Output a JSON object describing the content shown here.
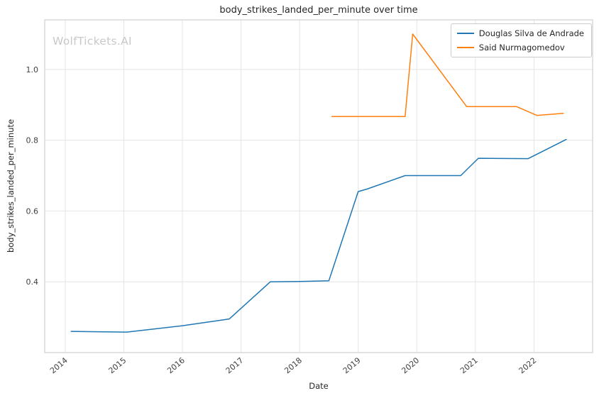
{
  "watermark": "WolfTickets.AI",
  "chart_data": {
    "type": "line",
    "title": "body_strikes_landed_per_minute over time",
    "xlabel": "Date",
    "ylabel": "body_strikes_landed_per_minute",
    "xlim": [
      2013.65,
      2023.0
    ],
    "ylim": [
      0.2,
      1.14
    ],
    "xticks": [
      2014,
      2015,
      2016,
      2017,
      2018,
      2019,
      2020,
      2021,
      2022
    ],
    "yticks": [
      0.4,
      0.6,
      0.8,
      1.0
    ],
    "grid": true,
    "legend_position": "upper right",
    "series": [
      {
        "name": "Douglas Silva de Andrade",
        "color": "#1f77b4",
        "x": [
          2014.1,
          2015.05,
          2016.0,
          2016.8,
          2017.5,
          2018.0,
          2018.5,
          2019.0,
          2019.15,
          2019.8,
          2020.75,
          2021.05,
          2021.9,
          2022.55
        ],
        "y": [
          0.26,
          0.258,
          0.276,
          0.295,
          0.4,
          0.401,
          0.403,
          0.655,
          0.662,
          0.7,
          0.7,
          0.749,
          0.748,
          0.802
        ]
      },
      {
        "name": "Said Nurmagomedov",
        "color": "#ff7f0e",
        "x": [
          2018.55,
          2019.8,
          2019.93,
          2020.85,
          2021.7,
          2022.05,
          2022.5
        ],
        "y": [
          0.867,
          0.867,
          1.1,
          0.895,
          0.895,
          0.87,
          0.876
        ]
      }
    ]
  },
  "style": {
    "grid_color": "#e4e4e4",
    "spine_color": "#cfcfcf",
    "tick_color": "#404040"
  }
}
